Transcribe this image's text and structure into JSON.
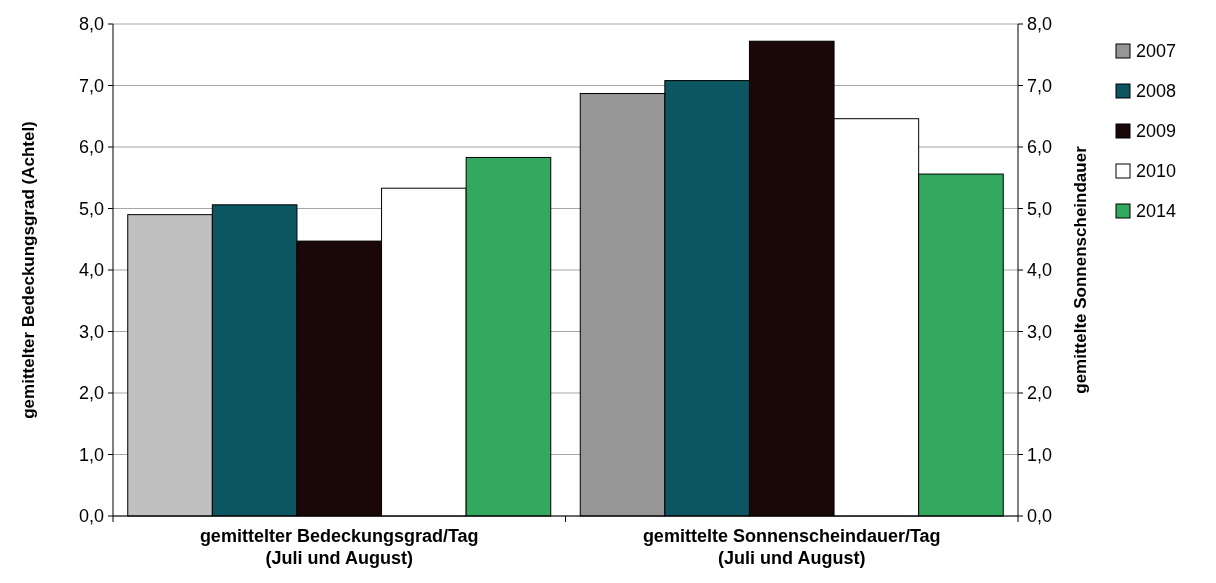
{
  "chart_data": {
    "type": "bar",
    "categories": [
      "gemittelter Bedeckungsgrad/Tag\n(Juli und August)",
      "gemittelte Sonnenscheindauer/Tag\n(Juli und August)"
    ],
    "series": [
      {
        "name": "2007",
        "color": "#969696",
        "colors": [
          "#c0c0c0",
          "#969696"
        ],
        "values": [
          4.9,
          6.87
        ]
      },
      {
        "name": "2008",
        "color": "#0b5660",
        "values": [
          5.06,
          7.08
        ]
      },
      {
        "name": "2009",
        "color": "#1a0808",
        "values": [
          4.47,
          7.72
        ]
      },
      {
        "name": "2010",
        "color": "#ffffff",
        "values": [
          5.33,
          6.46
        ]
      },
      {
        "name": "2014",
        "color": "#33a95f",
        "values": [
          5.83,
          5.56
        ]
      }
    ],
    "ylabel": "gemittelter Bedeckungsgrad (Achtel)",
    "y2label": "gemittelte Sonnenscheindauer",
    "ylim": [
      0,
      8
    ],
    "yticks": [
      {
        "value": 0,
        "label": "0,0"
      },
      {
        "value": 1,
        "label": "1,0"
      },
      {
        "value": 2,
        "label": "2,0"
      },
      {
        "value": 3,
        "label": "3,0"
      },
      {
        "value": 4,
        "label": "4,0"
      },
      {
        "value": 5,
        "label": "5,0"
      },
      {
        "value": 6,
        "label": "6,0"
      },
      {
        "value": 7,
        "label": "7,0"
      },
      {
        "value": 8,
        "label": "8,0"
      }
    ],
    "y2lim": [
      0,
      8
    ],
    "y2ticks": [
      {
        "value": 0,
        "label": "0,0"
      },
      {
        "value": 1,
        "label": "1,0"
      },
      {
        "value": 2,
        "label": "2,0"
      },
      {
        "value": 3,
        "label": "3,0"
      },
      {
        "value": 4,
        "label": "4,0"
      },
      {
        "value": 5,
        "label": "5,0"
      },
      {
        "value": 6,
        "label": "6,0"
      },
      {
        "value": 7,
        "label": "7,0"
      },
      {
        "value": 8,
        "label": "8,0"
      }
    ],
    "grid": "y",
    "legend": "top right"
  }
}
